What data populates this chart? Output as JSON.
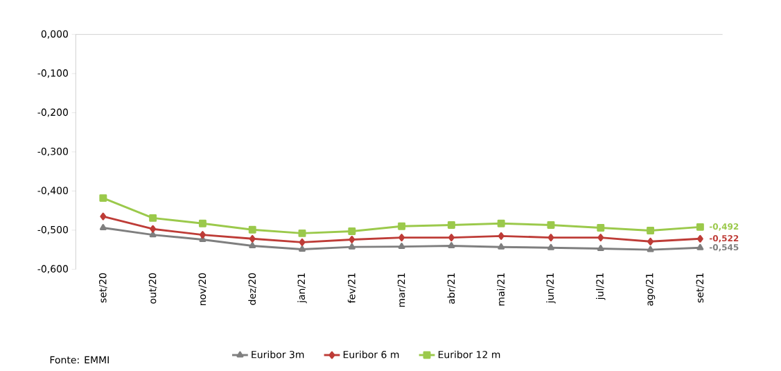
{
  "chart_data": {
    "type": "line",
    "categories": [
      "set/20",
      "out/20",
      "nov/20",
      "dez/20",
      "jan/21",
      "fev/21",
      "mar/21",
      "abr/21",
      "mai/21",
      "jun/21",
      "jul/21",
      "ago/21",
      "set/21"
    ],
    "series": [
      {
        "name": "Euribor 3m",
        "color": "#7f7f7f",
        "marker": "triangle",
        "values": [
          -0.494,
          -0.512,
          -0.524,
          -0.54,
          -0.549,
          -0.543,
          -0.542,
          -0.54,
          -0.543,
          -0.545,
          -0.547,
          -0.55,
          -0.545
        ],
        "value_labels": [
          null,
          null,
          null,
          null,
          null,
          null,
          null,
          null,
          null,
          null,
          null,
          null,
          "-0,545"
        ]
      },
      {
        "name": "Euribor 6 m",
        "color": "#be3c37",
        "marker": "diamond",
        "values": [
          -0.465,
          -0.497,
          -0.512,
          -0.522,
          -0.531,
          -0.524,
          -0.519,
          -0.519,
          -0.515,
          -0.519,
          -0.519,
          -0.529,
          -0.522
        ],
        "value_labels": [
          null,
          null,
          null,
          null,
          null,
          null,
          null,
          null,
          null,
          null,
          null,
          null,
          "-0,522"
        ]
      },
      {
        "name": "Euribor 12 m",
        "color": "#9bc94b",
        "marker": "square",
        "values": [
          -0.418,
          -0.469,
          -0.483,
          -0.499,
          -0.508,
          -0.503,
          -0.49,
          -0.487,
          -0.483,
          -0.487,
          -0.494,
          -0.501,
          -0.492
        ],
        "value_labels": [
          null,
          null,
          null,
          null,
          null,
          null,
          null,
          null,
          null,
          null,
          null,
          null,
          "-0,492"
        ]
      }
    ],
    "ylim": [
      -0.6,
      0
    ],
    "yticks": [
      {
        "value": -0.6,
        "label": "-0,600"
      },
      {
        "value": -0.5,
        "label": "-0,500"
      },
      {
        "value": -0.4,
        "label": "-0,400"
      },
      {
        "value": -0.3,
        "label": "-0,300"
      },
      {
        "value": -0.2,
        "label": "-0,200"
      },
      {
        "value": -0.1,
        "label": "-0,100"
      },
      {
        "value": 0,
        "label": "0,000"
      }
    ],
    "grid": false,
    "legend": "bottom",
    "line_style": "solid",
    "annotations": [
      "Fonte: EMMI"
    ]
  }
}
